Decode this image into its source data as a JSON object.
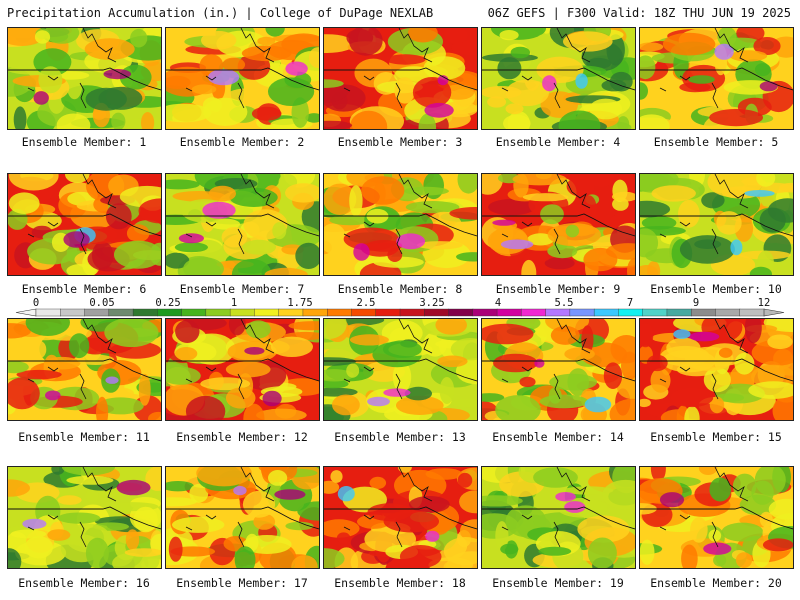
{
  "header": {
    "left_title": "Precipitation Accumulation (in.) | College of DuPage NEXLAB",
    "right_title": "06Z GEFS | F300 Valid: 18Z THU JUN 19 2025"
  },
  "members": [
    {
      "label": "Ensemble Member: 1"
    },
    {
      "label": "Ensemble Member: 2"
    },
    {
      "label": "Ensemble Member: 3"
    },
    {
      "label": "Ensemble Member: 4"
    },
    {
      "label": "Ensemble Member: 5"
    },
    {
      "label": "Ensemble Member: 6"
    },
    {
      "label": "Ensemble Member: 7"
    },
    {
      "label": "Ensemble Member: 8"
    },
    {
      "label": "Ensemble Member: 9"
    },
    {
      "label": "Ensemble Member: 10"
    },
    {
      "label": "Ensemble Member: 11"
    },
    {
      "label": "Ensemble Member: 12"
    },
    {
      "label": "Ensemble Member: 13"
    },
    {
      "label": "Ensemble Member: 14"
    },
    {
      "label": "Ensemble Member: 15"
    },
    {
      "label": "Ensemble Member: 16"
    },
    {
      "label": "Ensemble Member: 17"
    },
    {
      "label": "Ensemble Member: 18"
    },
    {
      "label": "Ensemble Member: 19"
    },
    {
      "label": "Ensemble Member: 20"
    }
  ],
  "legend": {
    "tick_labels": [
      "0",
      "0.05",
      "0.25",
      "1",
      "1.75",
      "2.5",
      "3.25",
      "4",
      "5.5",
      "7",
      "9",
      "12"
    ],
    "colors": [
      "#e8e8e8",
      "#c8c8c8",
      "#a0a0a0",
      "#6e8a6e",
      "#2f7a2f",
      "#1f9a1f",
      "#46b41e",
      "#8ccc20",
      "#c8e020",
      "#f0f020",
      "#ffd21e",
      "#ffa50a",
      "#ff7a00",
      "#f54a00",
      "#e61e10",
      "#c8141e",
      "#a00a28",
      "#82004a",
      "#aa0078",
      "#d200a0",
      "#f028d2",
      "#b478ff",
      "#7896ff",
      "#3cc8ff",
      "#14f0f0",
      "#50d2c8",
      "#46aaa0",
      "#8c8c8c",
      "#a8a8a8",
      "#bebebe"
    ]
  }
}
